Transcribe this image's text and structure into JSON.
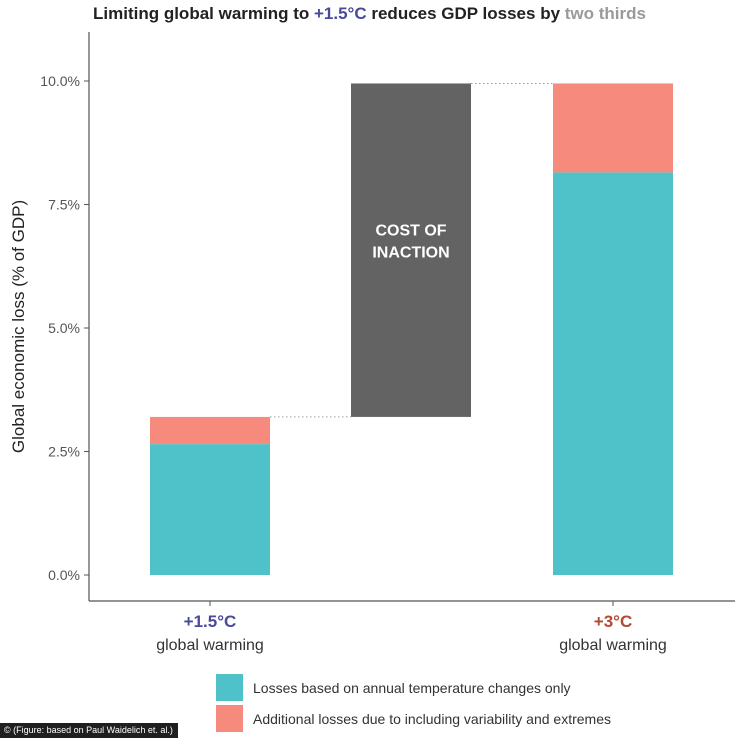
{
  "title": {
    "part1": "Limiting global warming to ",
    "highlight1": "+1.5°C",
    "part2": " reduces GDP losses by ",
    "highlight2": "two thirds"
  },
  "credit": "© (Figure: based on Paul Waidelich et. al.)",
  "colors": {
    "annual": "#4fc2c9",
    "variability": "#f58a7d",
    "cost": "#636363",
    "scenario_low": "#4a4a9c",
    "scenario_high": "#b04a32",
    "axis": "#555555",
    "text": "#333333"
  },
  "chart_data": {
    "type": "bar",
    "title": "Limiting global warming to +1.5°C reduces GDP losses by two thirds",
    "ylabel": "Global economic loss (% of GDP)",
    "xlabel": "",
    "ylim": [
      -0.5,
      11
    ],
    "y_ticks": [
      {
        "value": 0,
        "label": "0.0%"
      },
      {
        "value": 2.5,
        "label": "2.5%"
      },
      {
        "value": 5,
        "label": "5.0%"
      },
      {
        "value": 7.5,
        "label": "7.5%"
      },
      {
        "value": 10,
        "label": "10.0%"
      }
    ],
    "categories": [
      {
        "key": "low",
        "line1": "+1.5°C",
        "line2": "global warming"
      },
      {
        "key": "gap",
        "line1": "",
        "line2": ""
      },
      {
        "key": "high",
        "line1": "+3°C",
        "line2": "global warming"
      }
    ],
    "series": [
      {
        "name": "Losses based on annual temperature changes only",
        "values": [
          2.65,
          null,
          8.15
        ]
      },
      {
        "name": "Additional losses due to including variability and extremes",
        "values": [
          0.55,
          null,
          1.8
        ]
      }
    ],
    "cost_of_inaction": {
      "label_line1": "COST OF",
      "label_line2": "INACTION",
      "from": 3.2,
      "to": 9.95
    },
    "grid": false,
    "legend_position": "bottom"
  }
}
